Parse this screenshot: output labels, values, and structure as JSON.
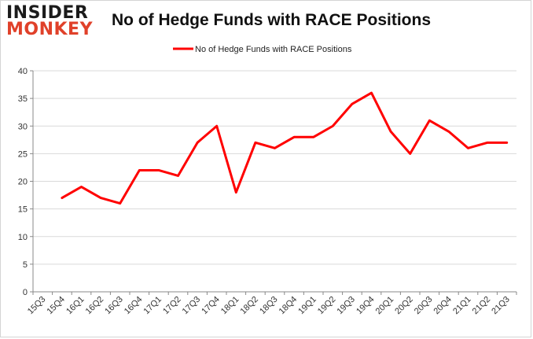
{
  "logo": {
    "line1": "INSIDER",
    "line2": "MONKEY"
  },
  "colors": {
    "series": "#ff0000",
    "grid": "#d9d9d9",
    "axis": "#888888",
    "logo_accent": "#e0412a"
  },
  "chart_data": {
    "type": "line",
    "title": "No of Hedge Funds with RACE Positions",
    "xlabel": "",
    "ylabel": "",
    "ylim": [
      0,
      40
    ],
    "yticks": [
      0,
      5,
      10,
      15,
      20,
      25,
      30,
      35,
      40
    ],
    "grid": true,
    "legend_placement": "top-center",
    "categories": [
      "15Q3",
      "15Q4",
      "16Q1",
      "16Q2",
      "16Q3",
      "16Q4",
      "17Q1",
      "17Q2",
      "17Q3",
      "17Q4",
      "18Q1",
      "18Q2",
      "18Q3",
      "18Q4",
      "19Q1",
      "19Q2",
      "19Q3",
      "19Q4",
      "20Q1",
      "20Q2",
      "20Q3",
      "20Q4",
      "21Q1",
      "21Q2",
      "21Q3"
    ],
    "series": [
      {
        "name": "No of Hedge Funds with RACE Positions",
        "values": [
          null,
          17,
          19,
          17,
          16,
          22,
          22,
          21,
          27,
          30,
          18,
          27,
          26,
          28,
          28,
          30,
          34,
          36,
          29,
          25,
          31,
          29,
          26,
          27,
          27
        ]
      }
    ]
  }
}
